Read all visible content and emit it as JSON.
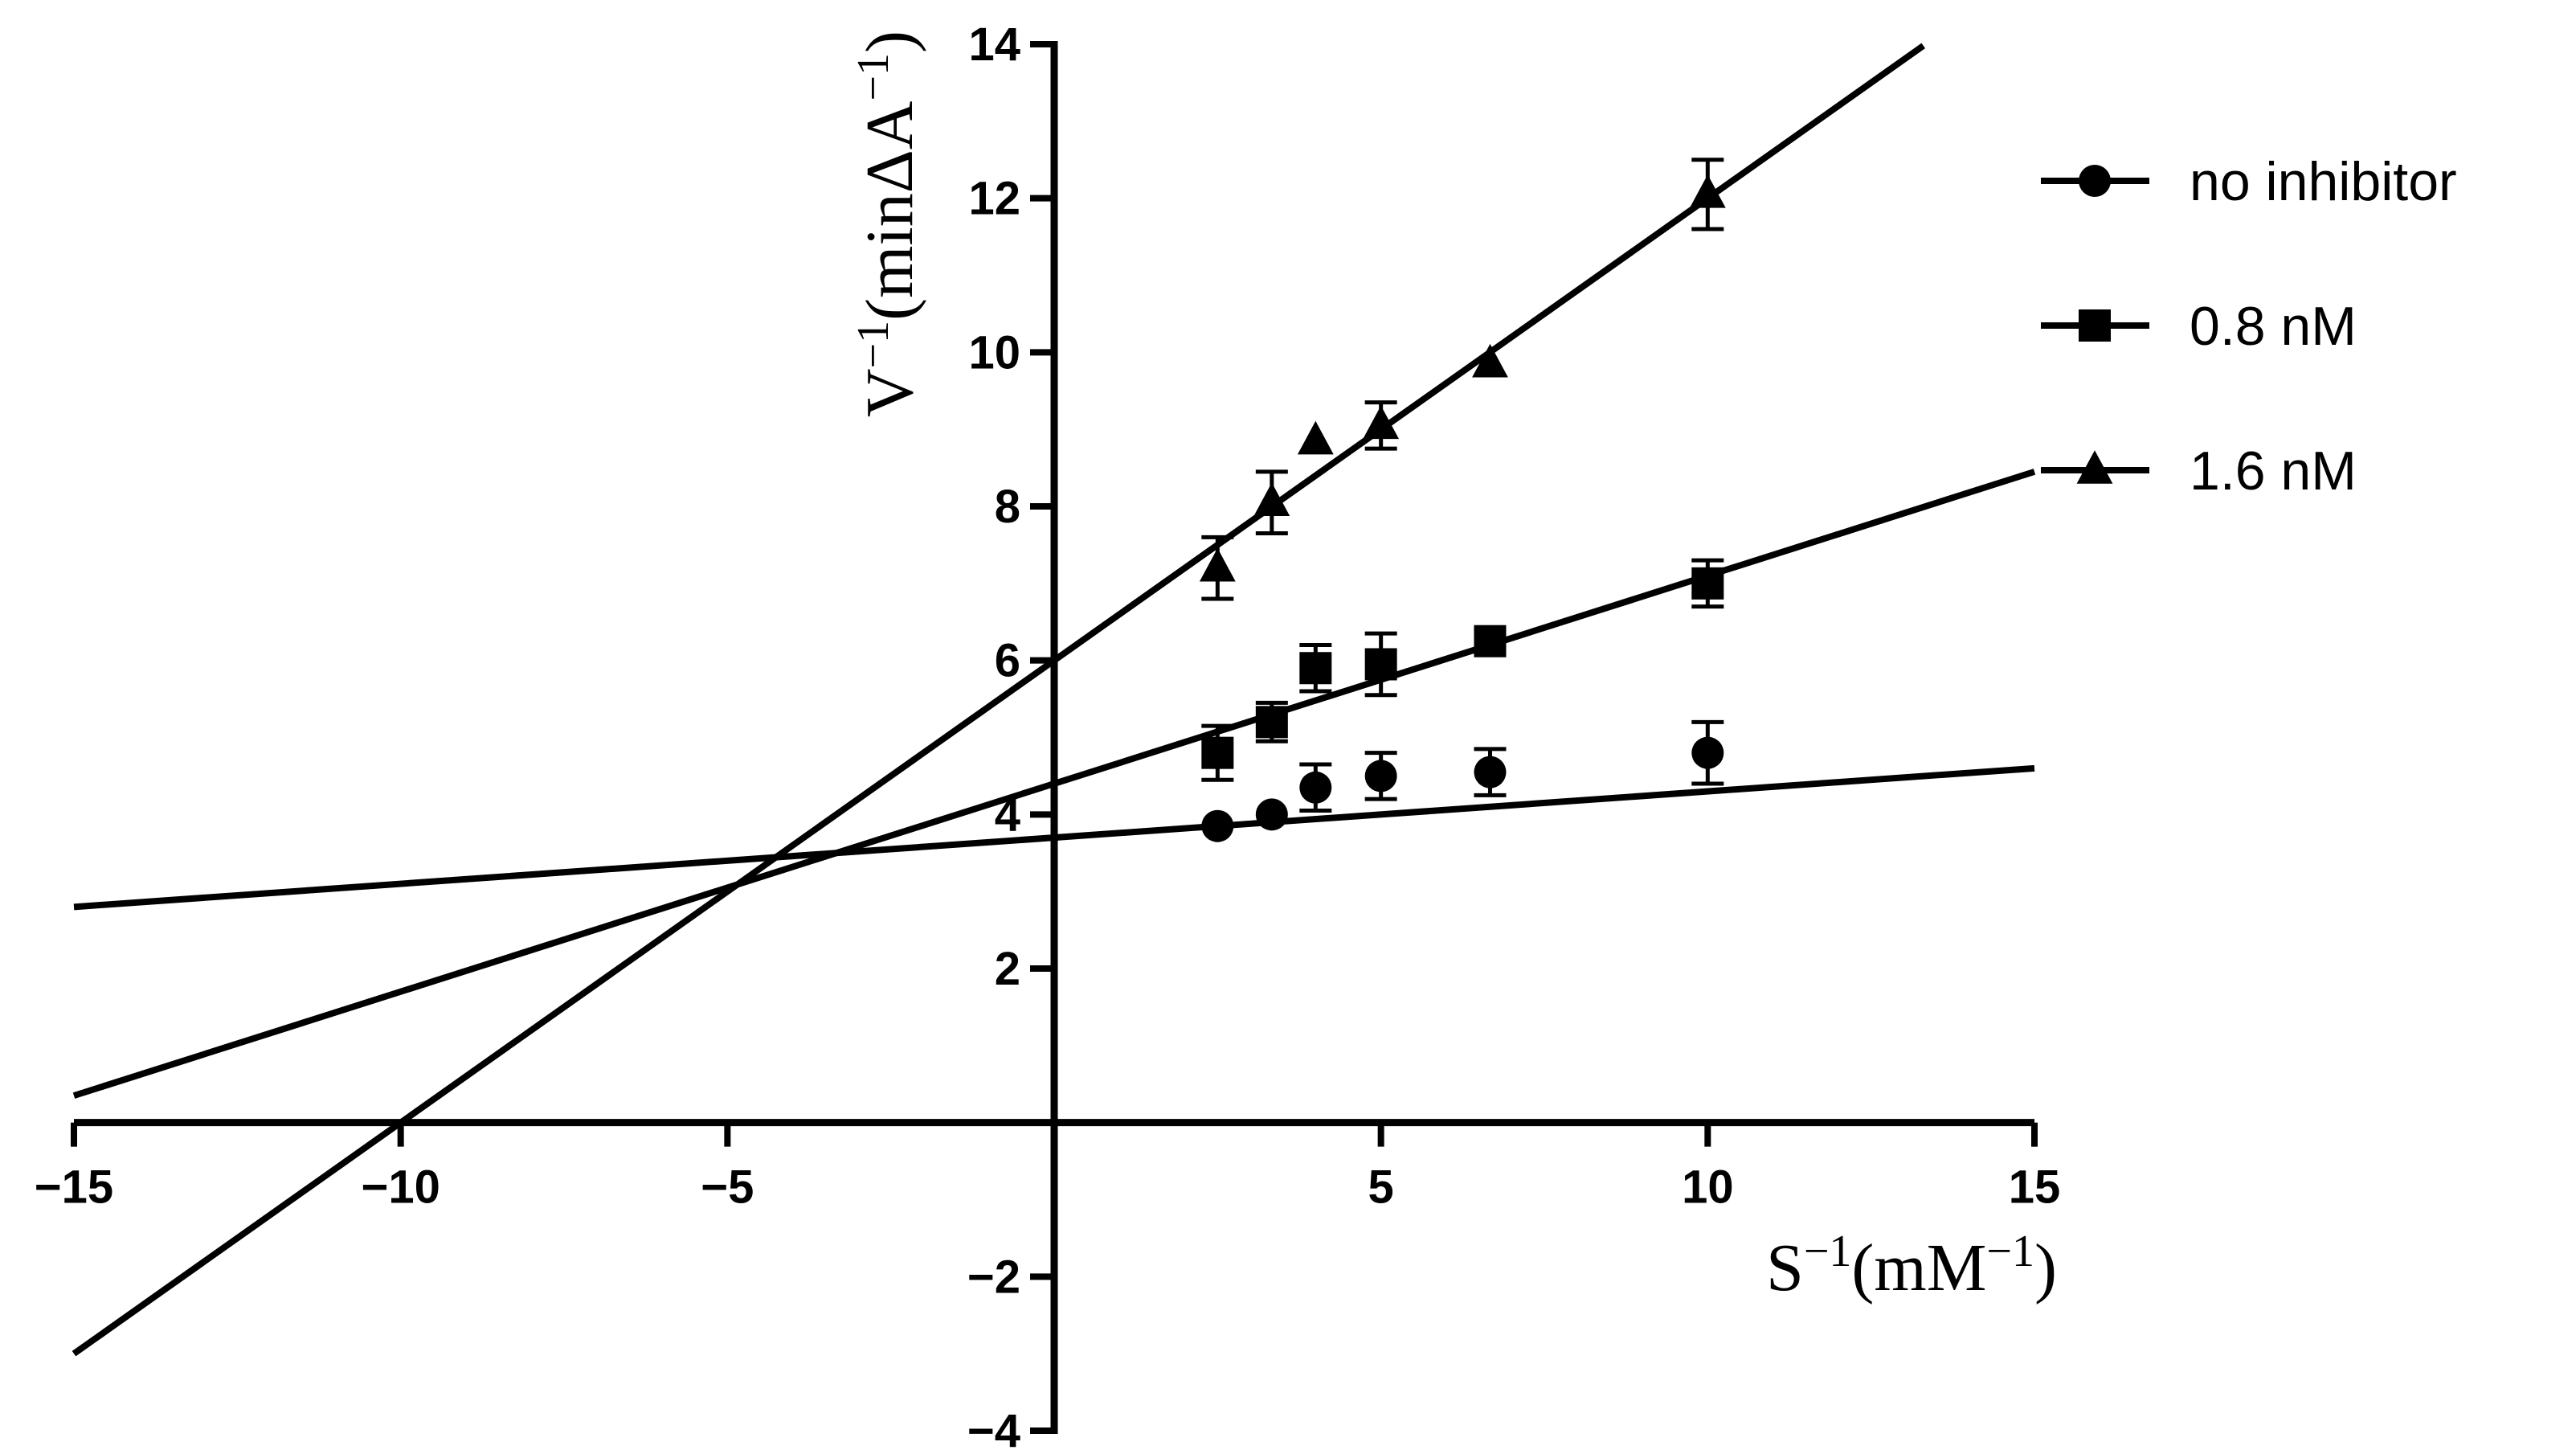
{
  "chart_data": {
    "type": "scatter",
    "title": "",
    "xlabel": {
      "base": "S",
      "sup": "−1",
      "unit_open": "(mM",
      "unit_sup": "−1",
      "unit_close": ")"
    },
    "ylabel": {
      "base": "V",
      "sup": "−1",
      "unit_open": "(minΔA",
      "unit_sup": "−1",
      "unit_close": ")"
    },
    "xlim": [
      -15,
      15
    ],
    "ylim": [
      -4,
      14
    ],
    "xticks": [
      -15,
      -10,
      -5,
      5,
      10,
      15
    ],
    "xtick_labels": [
      "−15",
      "−10",
      "−5",
      "5",
      "10",
      "15"
    ],
    "yticks": [
      -4,
      -2,
      2,
      4,
      6,
      8,
      10,
      12,
      14
    ],
    "ytick_labels": [
      "−4",
      "−2",
      "2",
      "4",
      "6",
      "8",
      "10",
      "12",
      "14"
    ],
    "grid": false,
    "legend_position": "top-right",
    "color": "#000000",
    "series": [
      {
        "name": "no inhibitor",
        "marker": "circle",
        "x": [
          2.5,
          3.33,
          4,
          5,
          6.67,
          10
        ],
        "y": [
          3.85,
          4.0,
          4.35,
          4.5,
          4.55,
          4.8
        ],
        "err": [
          0,
          0,
          0.3,
          0.3,
          0.3,
          0.4
        ],
        "fit": {
          "slope": 0.06,
          "intercept": 3.7,
          "x_range": [
            -15,
            15
          ]
        }
      },
      {
        "name": "0.8 nM",
        "marker": "square",
        "x": [
          2.5,
          3.33,
          4,
          5,
          6.67,
          10
        ],
        "y": [
          4.8,
          5.2,
          5.9,
          5.95,
          6.25,
          7.0
        ],
        "err": [
          0.35,
          0.25,
          0.3,
          0.4,
          0.15,
          0.3
        ],
        "fit": {
          "slope": 0.27,
          "intercept": 4.4,
          "x_range": [
            -15,
            15
          ]
        }
      },
      {
        "name": "1.6 nM",
        "marker": "triangle",
        "x": [
          2.5,
          3.33,
          4,
          5,
          6.67,
          10
        ],
        "y": [
          7.2,
          8.05,
          8.85,
          9.05,
          9.85,
          12.05
        ],
        "err": [
          0.4,
          0.4,
          0,
          0.3,
          0,
          0.45
        ],
        "fit": {
          "slope": 0.6,
          "intercept": 6.0,
          "x_range": [
            -15,
            13.3
          ]
        }
      }
    ]
  }
}
